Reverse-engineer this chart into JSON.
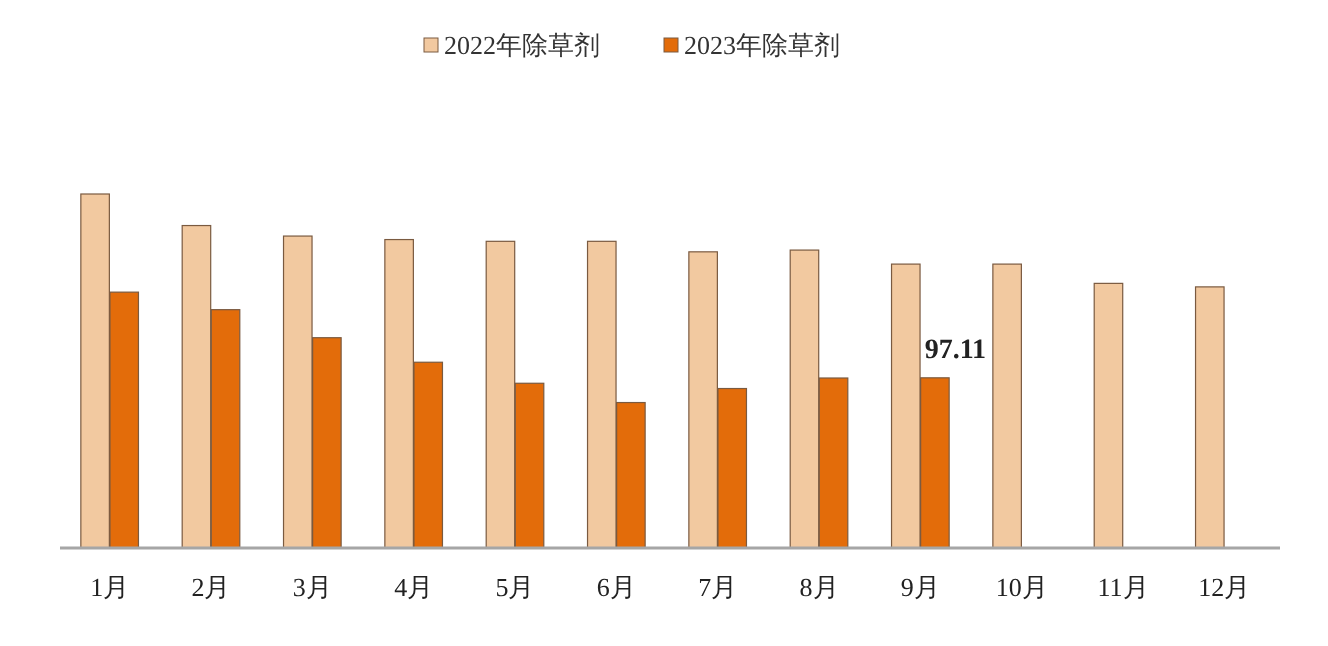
{
  "chart_data": {
    "type": "bar",
    "categories": [
      "1月",
      "2月",
      "3月",
      "4月",
      "5月",
      "6月",
      "7月",
      "8月",
      "9月",
      "10月",
      "11月",
      "12月"
    ],
    "series": [
      {
        "name": "2022年除草剂",
        "color": "#f2c9a0",
        "values": [
          202,
          184,
          178,
          176,
          175,
          175,
          169,
          170,
          162,
          162,
          151,
          149
        ]
      },
      {
        "name": "2023年除草剂",
        "color": "#e36c0a",
        "values": [
          146,
          136,
          120,
          106,
          94,
          83,
          91,
          97,
          97.11,
          null,
          null,
          null
        ],
        "value_labels": [
          null,
          null,
          null,
          null,
          null,
          null,
          null,
          null,
          "97.11",
          null,
          null,
          null
        ]
      }
    ],
    "legend": "top"
  }
}
